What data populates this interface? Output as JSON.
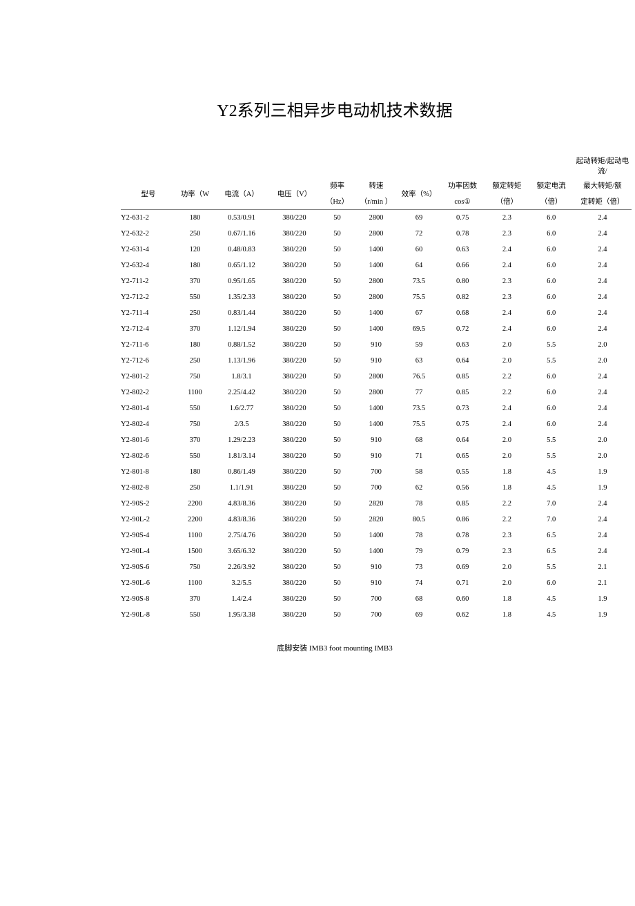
{
  "title": "Y2系列三相异步电动机技术数据",
  "headers": {
    "super_right_line1": "起动转矩/起动电流/",
    "super_right_line2": "最大转矩/额",
    "model": "型号",
    "power": "功率（W",
    "current": "电流（A）",
    "voltage": "电压（V）",
    "freq_top": "频率",
    "freq_bottom": "（Hz）",
    "speed_top": "转速",
    "speed_bottom": "（r/min ）",
    "eff": "效率（%）",
    "pf_top": "功率因数",
    "pf_bottom": "cos①",
    "rated_torque_top": "额定转矩",
    "rated_torque_bottom": "（倍）",
    "rated_current_top": "额定电流",
    "rated_current_bottom": "（倍）",
    "last_bottom": "定转矩（倍）"
  },
  "rows": [
    {
      "model": "Y2-631-2",
      "power": "180",
      "current": "0.53/0.91",
      "voltage": "380/220",
      "freq": "50",
      "speed": "2800",
      "eff": "69",
      "pf": "0.75",
      "rt": "2.3",
      "rc": "6.0",
      "last": "2.4"
    },
    {
      "model": "Y2-632-2",
      "power": "250",
      "current": "0.67/1.16",
      "voltage": "380/220",
      "freq": "50",
      "speed": "2800",
      "eff": "72",
      "pf": "0.78",
      "rt": "2.3",
      "rc": "6.0",
      "last": "2.4"
    },
    {
      "model": "Y2-631-4",
      "power": "120",
      "current": "0.48/0.83",
      "voltage": "380/220",
      "freq": "50",
      "speed": "1400",
      "eff": "60",
      "pf": "0.63",
      "rt": "2.4",
      "rc": "6.0",
      "last": "2.4"
    },
    {
      "model": "Y2-632-4",
      "power": "180",
      "current": "0.65/1.12",
      "voltage": "380/220",
      "freq": "50",
      "speed": "1400",
      "eff": "64",
      "pf": "0.66",
      "rt": "2.4",
      "rc": "6.0",
      "last": "2.4"
    },
    {
      "model": "Y2-711-2",
      "power": "370",
      "current": "0.95/1.65",
      "voltage": "380/220",
      "freq": "50",
      "speed": "2800",
      "eff": "73.5",
      "pf": "0.80",
      "rt": "2.3",
      "rc": "6.0",
      "last": "2.4"
    },
    {
      "model": "Y2-712-2",
      "power": "550",
      "current": "1.35/2.33",
      "voltage": "380/220",
      "freq": "50",
      "speed": "2800",
      "eff": "75.5",
      "pf": "0.82",
      "rt": "2.3",
      "rc": "6.0",
      "last": "2.4"
    },
    {
      "model": "Y2-711-4",
      "power": "250",
      "current": "0.83/1.44",
      "voltage": "380/220",
      "freq": "50",
      "speed": "1400",
      "eff": "67",
      "pf": "0.68",
      "rt": "2.4",
      "rc": "6.0",
      "last": "2.4"
    },
    {
      "model": "Y2-712-4",
      "power": "370",
      "current": "1.12/1.94",
      "voltage": "380/220",
      "freq": "50",
      "speed": "1400",
      "eff": "69.5",
      "pf": "0.72",
      "rt": "2.4",
      "rc": "6.0",
      "last": "2.4"
    },
    {
      "model": "Y2-711-6",
      "power": "180",
      "current": "0.88/1.52",
      "voltage": "380/220",
      "freq": "50",
      "speed": "910",
      "eff": "59",
      "pf": "0.63",
      "rt": "2.0",
      "rc": "5.5",
      "last": "2.0"
    },
    {
      "model": "Y2-712-6",
      "power": "250",
      "current": "1.13/1.96",
      "voltage": "380/220",
      "freq": "50",
      "speed": "910",
      "eff": "63",
      "pf": "0.64",
      "rt": "2.0",
      "rc": "5.5",
      "last": "2.0"
    },
    {
      "model": "Y2-801-2",
      "power": "750",
      "current": "1.8/3.1",
      "voltage": "380/220",
      "freq": "50",
      "speed": "2800",
      "eff": "76.5",
      "pf": "0.85",
      "rt": "2.2",
      "rc": "6.0",
      "last": "2.4"
    },
    {
      "model": "Y2-802-2",
      "power": "1100",
      "current": "2.25/4.42",
      "voltage": "380/220",
      "freq": "50",
      "speed": "2800",
      "eff": "77",
      "pf": "0.85",
      "rt": "2.2",
      "rc": "6.0",
      "last": "2.4"
    },
    {
      "model": "Y2-801-4",
      "power": "550",
      "current": "1.6/2.77",
      "voltage": "380/220",
      "freq": "50",
      "speed": "1400",
      "eff": "73.5",
      "pf": "0.73",
      "rt": "2.4",
      "rc": "6.0",
      "last": "2.4"
    },
    {
      "model": "Y2-802-4",
      "power": "750",
      "current": "2/3.5",
      "voltage": "380/220",
      "freq": "50",
      "speed": "1400",
      "eff": "75.5",
      "pf": "0.75",
      "rt": "2.4",
      "rc": "6.0",
      "last": "2.4"
    },
    {
      "model": "Y2-801-6",
      "power": "370",
      "current": "1.29/2.23",
      "voltage": "380/220",
      "freq": "50",
      "speed": "910",
      "eff": "68",
      "pf": "0.64",
      "rt": "2.0",
      "rc": "5.5",
      "last": "2.0"
    },
    {
      "model": "Y2-802-6",
      "power": "550",
      "current": "1.81/3.14",
      "voltage": "380/220",
      "freq": "50",
      "speed": "910",
      "eff": "71",
      "pf": "0.65",
      "rt": "2.0",
      "rc": "5.5",
      "last": "2.0"
    },
    {
      "model": "Y2-801-8",
      "power": "180",
      "current": "0.86/1.49",
      "voltage": "380/220",
      "freq": "50",
      "speed": "700",
      "eff": "58",
      "pf": "0.55",
      "rt": "1.8",
      "rc": "4.5",
      "last": "1.9"
    },
    {
      "model": "Y2-802-8",
      "power": "250",
      "current": "1.1/1.91",
      "voltage": "380/220",
      "freq": "50",
      "speed": "700",
      "eff": "62",
      "pf": "0.56",
      "rt": "1.8",
      "rc": "4.5",
      "last": "1.9"
    },
    {
      "model": "Y2-90S-2",
      "power": "2200",
      "current": "4.83/8.36",
      "voltage": "380/220",
      "freq": "50",
      "speed": "2820",
      "eff": "78",
      "pf": "0.85",
      "rt": "2.2",
      "rc": "7.0",
      "last": "2.4"
    },
    {
      "model": "Y2-90L-2",
      "power": "2200",
      "current": "4.83/8.36",
      "voltage": "380/220",
      "freq": "50",
      "speed": "2820",
      "eff": "80.5",
      "pf": "0.86",
      "rt": "2.2",
      "rc": "7.0",
      "last": "2.4"
    },
    {
      "model": "Y2-90S-4",
      "power": "1100",
      "current": "2.75/4.76",
      "voltage": "380/220",
      "freq": "50",
      "speed": "1400",
      "eff": "78",
      "pf": "0.78",
      "rt": "2.3",
      "rc": "6.5",
      "last": "2.4"
    },
    {
      "model": "Y2-90L-4",
      "power": "1500",
      "current": "3.65/6.32",
      "voltage": "380/220",
      "freq": "50",
      "speed": "1400",
      "eff": "79",
      "pf": "0.79",
      "rt": "2.3",
      "rc": "6.5",
      "last": "2.4"
    },
    {
      "model": "Y2-90S-6",
      "power": "750",
      "current": "2.26/3.92",
      "voltage": "380/220",
      "freq": "50",
      "speed": "910",
      "eff": "73",
      "pf": "0.69",
      "rt": "2.0",
      "rc": "5.5",
      "last": "2.1"
    },
    {
      "model": "Y2-90L-6",
      "power": "1100",
      "current": "3.2/5.5",
      "voltage": "380/220",
      "freq": "50",
      "speed": "910",
      "eff": "74",
      "pf": "0.71",
      "rt": "2.0",
      "rc": "6.0",
      "last": "2.1"
    },
    {
      "model": "Y2-90S-8",
      "power": "370",
      "current": "1.4/2.4",
      "voltage": "380/220",
      "freq": "50",
      "speed": "700",
      "eff": "68",
      "pf": "0.60",
      "rt": "1.8",
      "rc": "4.5",
      "last": "1.9"
    },
    {
      "model": "Y2-90L-8",
      "power": "550",
      "current": "1.95/3.38",
      "voltage": "380/220",
      "freq": "50",
      "speed": "700",
      "eff": "69",
      "pf": "0.62",
      "rt": "1.8",
      "rc": "4.5",
      "last": "1.9"
    }
  ],
  "footer": "底脚安装 IMB3 foot mounting IMB3"
}
